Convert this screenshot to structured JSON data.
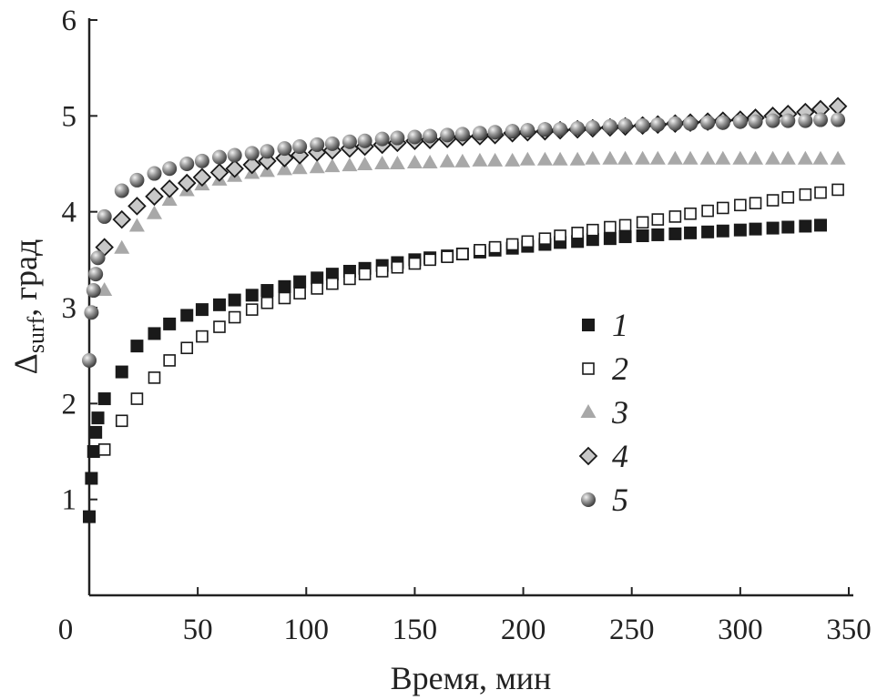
{
  "chart_data": {
    "type": "scatter",
    "title": "",
    "xlabel": "Время, мин",
    "ylabel_main": "Δ",
    "ylabel_sub": "surf",
    "ylabel_rest": ", град",
    "xlim": [
      0,
      350
    ],
    "ylim": [
      0,
      6
    ],
    "xticks": [
      0,
      50,
      100,
      150,
      200,
      250,
      300,
      350
    ],
    "yticks": [
      1,
      2,
      3,
      4,
      5,
      6
    ],
    "grid": false,
    "legend_position": "center-right",
    "series": [
      {
        "name": "1",
        "marker": "filled-square",
        "color": "#1a1a1a",
        "x": [
          0,
          1,
          2,
          3,
          4,
          7,
          15,
          22,
          30,
          37,
          45,
          52,
          60,
          67,
          75,
          82,
          90,
          97,
          105,
          112,
          120,
          127,
          135,
          142,
          150,
          157,
          165,
          172,
          180,
          187,
          195,
          202,
          210,
          217,
          225,
          232,
          240,
          247,
          255,
          262,
          270,
          277,
          285,
          292,
          300,
          307,
          315,
          322,
          330,
          337
        ],
        "y": [
          0.82,
          1.22,
          1.5,
          1.7,
          1.85,
          2.05,
          2.33,
          2.6,
          2.73,
          2.83,
          2.92,
          2.98,
          3.03,
          3.08,
          3.13,
          3.18,
          3.22,
          3.27,
          3.31,
          3.35,
          3.38,
          3.41,
          3.44,
          3.47,
          3.5,
          3.52,
          3.54,
          3.56,
          3.58,
          3.6,
          3.62,
          3.64,
          3.66,
          3.68,
          3.69,
          3.71,
          3.72,
          3.74,
          3.75,
          3.76,
          3.77,
          3.78,
          3.79,
          3.8,
          3.81,
          3.82,
          3.83,
          3.84,
          3.85,
          3.86
        ]
      },
      {
        "name": "2",
        "marker": "open-square",
        "color": "#1a1a1a",
        "x": [
          7,
          15,
          22,
          30,
          37,
          45,
          52,
          60,
          67,
          75,
          82,
          90,
          97,
          105,
          112,
          120,
          127,
          135,
          142,
          150,
          157,
          165,
          172,
          180,
          187,
          195,
          202,
          210,
          217,
          225,
          232,
          240,
          247,
          255,
          262,
          270,
          277,
          285,
          292,
          300,
          307,
          315,
          322,
          330,
          337,
          345
        ],
        "y": [
          1.52,
          1.82,
          2.05,
          2.27,
          2.45,
          2.58,
          2.7,
          2.8,
          2.9,
          2.98,
          3.05,
          3.1,
          3.15,
          3.2,
          3.25,
          3.3,
          3.35,
          3.38,
          3.42,
          3.46,
          3.5,
          3.53,
          3.56,
          3.6,
          3.63,
          3.66,
          3.69,
          3.72,
          3.75,
          3.78,
          3.81,
          3.84,
          3.86,
          3.89,
          3.92,
          3.95,
          3.98,
          4.01,
          4.04,
          4.07,
          4.09,
          4.12,
          4.15,
          4.18,
          4.2,
          4.23
        ]
      },
      {
        "name": "3",
        "marker": "triangle",
        "color": "#a8a8a8",
        "x": [
          7,
          15,
          22,
          30,
          37,
          45,
          52,
          60,
          67,
          75,
          82,
          90,
          97,
          105,
          112,
          120,
          127,
          135,
          142,
          150,
          157,
          165,
          172,
          180,
          187,
          195,
          202,
          210,
          217,
          225,
          232,
          240,
          247,
          255,
          262,
          270,
          277,
          285,
          292,
          300,
          307,
          315,
          322,
          330,
          337,
          345
        ],
        "y": [
          3.18,
          3.62,
          3.85,
          3.98,
          4.12,
          4.22,
          4.28,
          4.33,
          4.37,
          4.4,
          4.42,
          4.44,
          4.45,
          4.46,
          4.47,
          4.48,
          4.49,
          4.5,
          4.5,
          4.51,
          4.51,
          4.52,
          4.52,
          4.53,
          4.53,
          4.53,
          4.54,
          4.54,
          4.54,
          4.54,
          4.55,
          4.55,
          4.55,
          4.55,
          4.55,
          4.55,
          4.55,
          4.55,
          4.55,
          4.55,
          4.55,
          4.55,
          4.55,
          4.55,
          4.55,
          4.55
        ]
      },
      {
        "name": "4",
        "marker": "diamond",
        "color": "#c8c8c8",
        "x": [
          7,
          15,
          22,
          30,
          37,
          45,
          52,
          60,
          67,
          75,
          82,
          90,
          97,
          105,
          112,
          120,
          127,
          135,
          142,
          150,
          157,
          165,
          172,
          180,
          187,
          195,
          202,
          210,
          217,
          225,
          232,
          240,
          247,
          255,
          262,
          270,
          277,
          285,
          292,
          300,
          307,
          315,
          322,
          330,
          337,
          345
        ],
        "y": [
          3.63,
          3.92,
          4.06,
          4.16,
          4.24,
          4.3,
          4.36,
          4.41,
          4.45,
          4.49,
          4.53,
          4.56,
          4.59,
          4.62,
          4.64,
          4.66,
          4.68,
          4.7,
          4.72,
          4.74,
          4.75,
          4.76,
          4.78,
          4.79,
          4.8,
          4.82,
          4.83,
          4.84,
          4.85,
          4.86,
          4.87,
          4.88,
          4.89,
          4.9,
          4.91,
          4.92,
          4.93,
          4.94,
          4.95,
          4.96,
          4.98,
          5.0,
          5.02,
          5.04,
          5.07,
          5.1
        ]
      },
      {
        "name": "5",
        "marker": "sphere",
        "color": "#8c8c8c",
        "x": [
          0,
          1,
          2,
          3,
          4,
          7,
          15,
          22,
          30,
          37,
          45,
          52,
          60,
          67,
          75,
          82,
          90,
          97,
          105,
          112,
          120,
          127,
          135,
          142,
          150,
          157,
          165,
          172,
          180,
          187,
          195,
          202,
          210,
          217,
          225,
          232,
          240,
          247,
          255,
          262,
          270,
          277,
          285,
          292,
          300,
          307,
          315,
          322,
          330,
          337,
          345
        ],
        "y": [
          2.45,
          2.95,
          3.18,
          3.35,
          3.52,
          3.95,
          4.22,
          4.33,
          4.4,
          4.45,
          4.5,
          4.53,
          4.57,
          4.59,
          4.61,
          4.63,
          4.66,
          4.68,
          4.7,
          4.71,
          4.73,
          4.74,
          4.76,
          4.77,
          4.78,
          4.79,
          4.8,
          4.81,
          4.82,
          4.83,
          4.84,
          4.85,
          4.86,
          4.86,
          4.87,
          4.88,
          4.89,
          4.9,
          4.9,
          4.91,
          4.92,
          4.92,
          4.93,
          4.93,
          4.94,
          4.94,
          4.95,
          4.95,
          4.95,
          4.96,
          4.96
        ]
      }
    ]
  }
}
